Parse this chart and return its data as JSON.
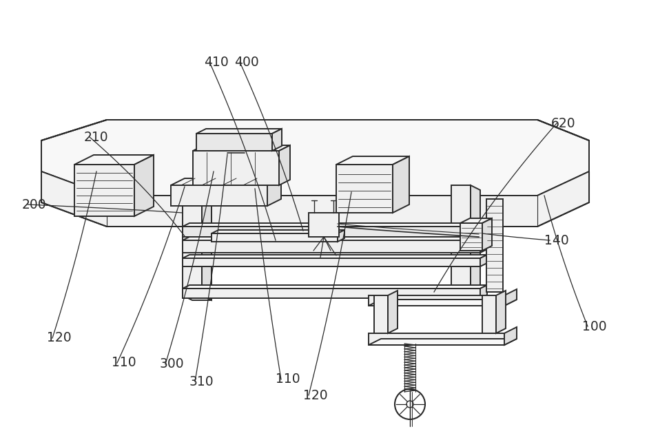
{
  "background_color": "#ffffff",
  "line_color": "#2a2a2a",
  "label_color": "#2a2a2a",
  "label_fontsize": 13.5,
  "figsize": [
    9.42,
    6.39
  ],
  "dpi": 100,
  "lw_main": 1.4,
  "lw_thin": 0.8,
  "face_white": "#ffffff",
  "face_light": "#f0f0f0",
  "face_mid": "#e0e0e0",
  "face_dark": "#c8c8c8"
}
